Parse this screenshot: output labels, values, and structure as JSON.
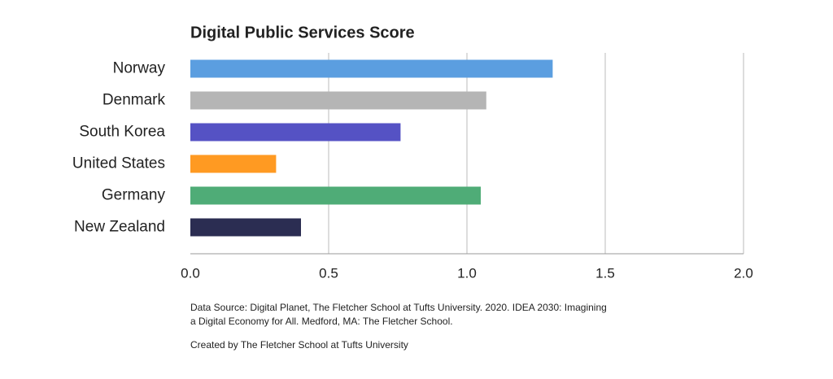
{
  "chart_data": {
    "type": "barh",
    "title": "Digital Public Services Score",
    "categories": [
      "Norway",
      "Denmark",
      "South Korea",
      "United States",
      "Germany",
      "New Zealand"
    ],
    "values": [
      1.31,
      1.07,
      0.76,
      0.31,
      1.05,
      0.4
    ],
    "colors": [
      "#5b9ee0",
      "#b5b5b5",
      "#5552c4",
      "#ff9a22",
      "#4fac77",
      "#2b2d52"
    ],
    "xlim": [
      0,
      2
    ],
    "xticks": [
      {
        "value": 0,
        "label": "0.0"
      },
      0.5,
      {
        "value": 1,
        "label": "1.0"
      },
      1.5,
      {
        "value": 2,
        "label": "2.0"
      }
    ],
    "grid": true,
    "source": [
      "Data Source: Digital Planet, The Fletcher School at Tufts University. 2020. IDEA 2030: Imagining",
      "a Digital Economy for All. Medford, MA: The Fletcher School."
    ],
    "credit": "Created by The Fletcher School at Tufts University"
  }
}
